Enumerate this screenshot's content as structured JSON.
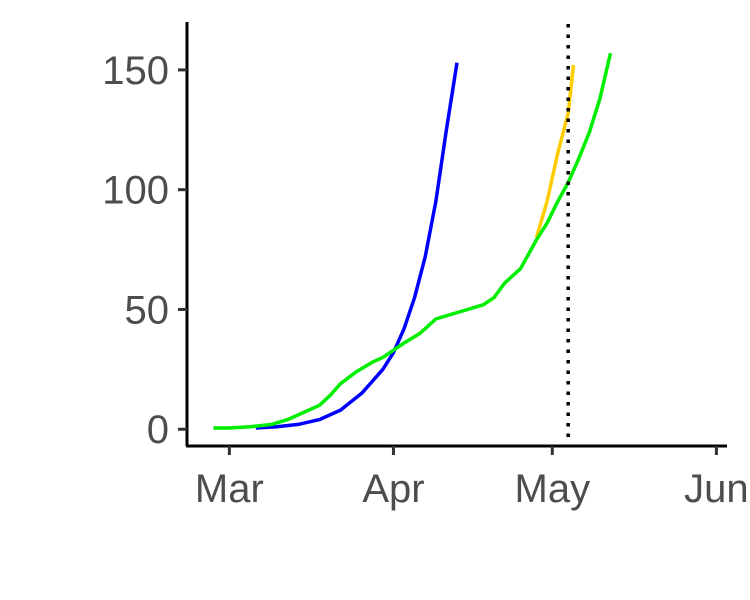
{
  "chart_data": {
    "type": "line",
    "title": "",
    "xlabel": "",
    "ylabel": "",
    "x_range": [
      "2020-02-22",
      "2020-06-03"
    ],
    "ylim": [
      -7,
      170
    ],
    "x_ticks": [
      {
        "label": "Mar",
        "date": "2020-03-01"
      },
      {
        "label": "Apr",
        "date": "2020-04-01"
      },
      {
        "label": "May",
        "date": "2020-05-01"
      },
      {
        "label": "Jun",
        "date": "2020-06-01"
      }
    ],
    "y_ticks": [
      {
        "label": "0",
        "value": 0
      },
      {
        "label": "50",
        "value": 50
      },
      {
        "label": "100",
        "value": 100
      },
      {
        "label": "150",
        "value": 150
      }
    ],
    "grid": false,
    "legend": "none",
    "vline": {
      "date": "2020-05-04",
      "style": "dotted",
      "color": "#000000"
    },
    "series": [
      {
        "color": "#0000ff",
        "points": [
          [
            "2020-03-06",
            0.5
          ],
          [
            "2020-03-10",
            1
          ],
          [
            "2020-03-14",
            2
          ],
          [
            "2020-03-18",
            4
          ],
          [
            "2020-03-22",
            8
          ],
          [
            "2020-03-26",
            15
          ],
          [
            "2020-03-30",
            25
          ],
          [
            "2020-04-01",
            32
          ],
          [
            "2020-04-03",
            42
          ],
          [
            "2020-04-05",
            55
          ],
          [
            "2020-04-07",
            72
          ],
          [
            "2020-04-09",
            95
          ],
          [
            "2020-04-11",
            125
          ],
          [
            "2020-04-13",
            153
          ]
        ]
      },
      {
        "color": "#ffcc00",
        "points": [
          [
            "2020-04-28",
            80
          ],
          [
            "2020-04-30",
            95
          ],
          [
            "2020-05-02",
            115
          ],
          [
            "2020-05-04",
            132
          ],
          [
            "2020-05-05",
            152
          ]
        ]
      },
      {
        "color": "#00ee00",
        "points": [
          [
            "2020-02-27",
            0.5
          ],
          [
            "2020-03-01",
            0.5
          ],
          [
            "2020-03-05",
            1
          ],
          [
            "2020-03-09",
            2
          ],
          [
            "2020-03-12",
            4
          ],
          [
            "2020-03-15",
            7
          ],
          [
            "2020-03-18",
            10
          ],
          [
            "2020-03-20",
            14
          ],
          [
            "2020-03-22",
            19
          ],
          [
            "2020-03-25",
            24
          ],
          [
            "2020-03-28",
            28
          ],
          [
            "2020-03-30",
            30
          ],
          [
            "2020-04-01",
            33
          ],
          [
            "2020-04-03",
            36
          ],
          [
            "2020-04-06",
            40
          ],
          [
            "2020-04-09",
            46
          ],
          [
            "2020-04-12",
            48
          ],
          [
            "2020-04-15",
            50
          ],
          [
            "2020-04-18",
            52
          ],
          [
            "2020-04-20",
            55
          ],
          [
            "2020-04-22",
            61
          ],
          [
            "2020-04-25",
            67
          ],
          [
            "2020-04-28",
            79
          ],
          [
            "2020-04-30",
            86
          ],
          [
            "2020-05-02",
            95
          ],
          [
            "2020-05-04",
            103
          ],
          [
            "2020-05-06",
            113
          ],
          [
            "2020-05-08",
            124
          ],
          [
            "2020-05-10",
            138
          ],
          [
            "2020-05-12",
            157
          ]
        ]
      }
    ]
  }
}
